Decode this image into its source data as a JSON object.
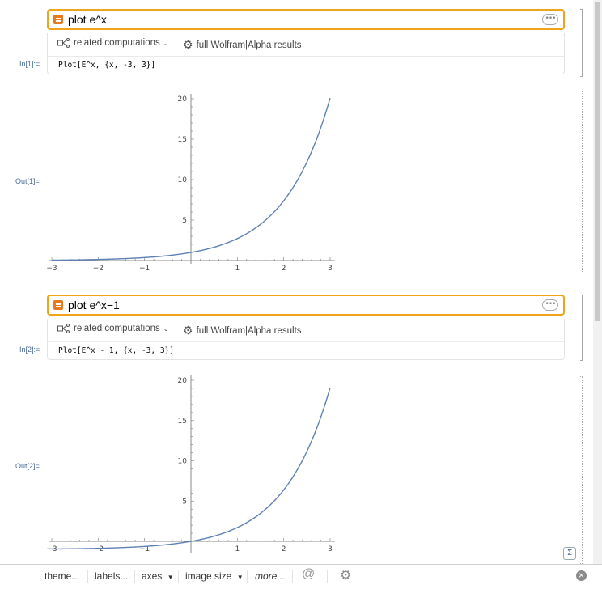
{
  "cells": [
    {
      "input_text": "plot e^x",
      "related_label": "related computations",
      "full_results_label": "full Wolfram|Alpha results",
      "in_label": "In[1]:=",
      "code": "Plot[E^x, {x, -3, 3}]",
      "out_label": "Out[1]="
    },
    {
      "input_text": "plot e^x−1",
      "related_label": "related computations",
      "full_results_label": "full Wolfram|Alpha results",
      "in_label": "In[2]:=",
      "code": "Plot[E^x - 1, {x, -3, 3}]",
      "out_label": "Out[2]="
    }
  ],
  "chart_data": [
    {
      "type": "line",
      "function": "E^x",
      "x": [
        -3,
        -2.5,
        -2,
        -1.5,
        -1,
        -0.5,
        0,
        0.5,
        1,
        1.5,
        2,
        2.25,
        2.5,
        2.75,
        3
      ],
      "y": [
        0.05,
        0.08,
        0.14,
        0.22,
        0.37,
        0.61,
        1.0,
        1.65,
        2.72,
        4.48,
        7.39,
        9.49,
        12.18,
        15.64,
        20.09
      ],
      "xlim": [
        -3,
        3
      ],
      "ylim": [
        0,
        20
      ],
      "xticks": [
        "-3",
        "-2",
        "-1",
        "1",
        "2",
        "3"
      ],
      "yticks": [
        "5",
        "10",
        "15",
        "20"
      ],
      "color": "#5e81b5"
    },
    {
      "type": "line",
      "function": "E^x - 1",
      "x": [
        -3,
        -2.5,
        -2,
        -1.5,
        -1,
        -0.5,
        0,
        0.5,
        1,
        1.5,
        2,
        2.25,
        2.5,
        2.75,
        3
      ],
      "y": [
        -0.95,
        -0.92,
        -0.86,
        -0.78,
        -0.63,
        -0.39,
        0.0,
        0.65,
        1.72,
        3.48,
        6.39,
        8.49,
        11.18,
        14.64,
        19.09
      ],
      "xlim": [
        -3,
        3
      ],
      "ylim": [
        -1,
        20
      ],
      "xticks": [
        "-3",
        "-2",
        "-1",
        "1",
        "2",
        "3"
      ],
      "yticks": [
        "5",
        "10",
        "15",
        "20"
      ],
      "color": "#5e81b5"
    }
  ],
  "toolbar": {
    "theme": "theme...",
    "labels": "labels...",
    "axes": "axes",
    "image_size": "image size",
    "more": "more..."
  },
  "icons": {
    "input_icon": "wolfram-input-icon",
    "options_icon": "ellipsis-icon",
    "related_icon": "share-graph-icon",
    "results_icon": "gear-icon",
    "close_icon": "close-icon",
    "suggestion_icon": "sigma-icon"
  },
  "colors": {
    "accent": "#f0a31b",
    "plot_line": "#5e81b5",
    "label": "#4a6a9c"
  }
}
